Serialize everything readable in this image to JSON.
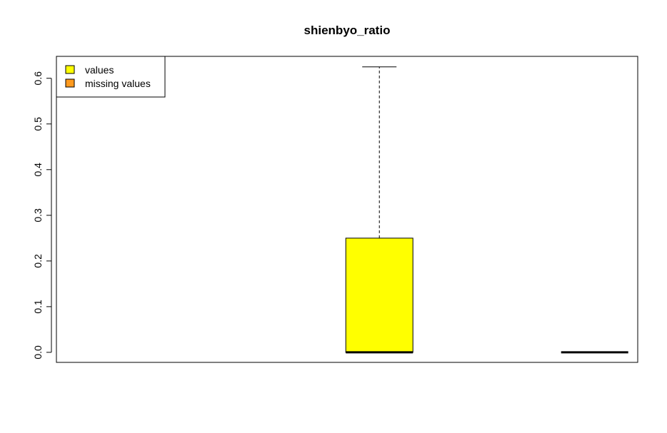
{
  "chart_data": {
    "type": "box",
    "title": "shienbyo_ratio",
    "xlabel": "",
    "ylabel": "",
    "ylim": [
      -0.022,
      0.648
    ],
    "yticks": [
      0.0,
      0.1,
      0.2,
      0.3,
      0.4,
      0.5,
      0.6
    ],
    "ytick_labels": [
      "0.0",
      "0.1",
      "0.2",
      "0.3",
      "0.4",
      "0.5",
      "0.6"
    ],
    "legend": {
      "position": "top-left",
      "entries": [
        {
          "label": "values",
          "color": "#ffff00"
        },
        {
          "label": "missing values",
          "color": "#ff9a1e"
        }
      ]
    },
    "boxes": [
      {
        "position": 2,
        "fill": "#ffff00",
        "min": 0.0,
        "q1": 0.0,
        "median": 0.0,
        "q3": 0.25,
        "max": 0.625
      },
      {
        "position": 3,
        "fill": "#ff9a1e",
        "min": 0.0,
        "q1": 0.0,
        "median": 0.0,
        "q3": 0.0,
        "max": 0.0
      }
    ],
    "xlim": [
      0.5,
      3.2
    ],
    "grid": false
  }
}
